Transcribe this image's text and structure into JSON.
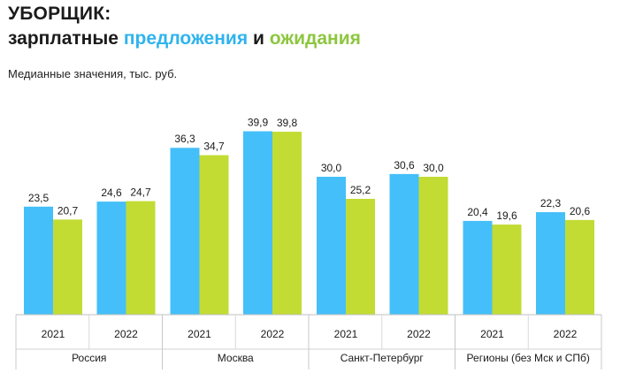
{
  "header": {
    "title": "УБОРЩИК:",
    "subtitle_part1": "зарплатные",
    "subtitle_part2": "предложения",
    "subtitle_part3": "и",
    "subtitle_part4": "ожидания",
    "note": "Медианные значения, тыс. руб."
  },
  "chart_data": {
    "type": "bar",
    "colors": {
      "offers": "#45bff9",
      "expectations": "#c2dc34"
    },
    "ylim": [
      0,
      45
    ],
    "groups": [
      {
        "region": "Россия",
        "years": [
          {
            "year": "2021",
            "offer": 23.5,
            "offer_label": "23,5",
            "expect": 20.7,
            "expect_label": "20,7"
          },
          {
            "year": "2022",
            "offer": 24.6,
            "offer_label": "24,6",
            "expect": 24.7,
            "expect_label": "24,7"
          }
        ]
      },
      {
        "region": "Москва",
        "years": [
          {
            "year": "2021",
            "offer": 36.3,
            "offer_label": "36,3",
            "expect": 34.7,
            "expect_label": "34,7"
          },
          {
            "year": "2022",
            "offer": 39.9,
            "offer_label": "39,9",
            "expect": 39.8,
            "expect_label": "39,8"
          }
        ]
      },
      {
        "region": "Санкт-Петербург",
        "years": [
          {
            "year": "2021",
            "offer": 30.0,
            "offer_label": "30,0",
            "expect": 25.2,
            "expect_label": "25,2"
          },
          {
            "year": "2022",
            "offer": 30.6,
            "offer_label": "30,6",
            "expect": 30.0,
            "expect_label": "30,0"
          }
        ]
      },
      {
        "region": "Регионы (без Мск и СПб)",
        "years": [
          {
            "year": "2021",
            "offer": 20.4,
            "offer_label": "20,4",
            "expect": 19.6,
            "expect_label": "19,6"
          },
          {
            "year": "2022",
            "offer": 22.3,
            "offer_label": "22,3",
            "expect": 20.6,
            "expect_label": "20,6"
          }
        ]
      }
    ]
  }
}
